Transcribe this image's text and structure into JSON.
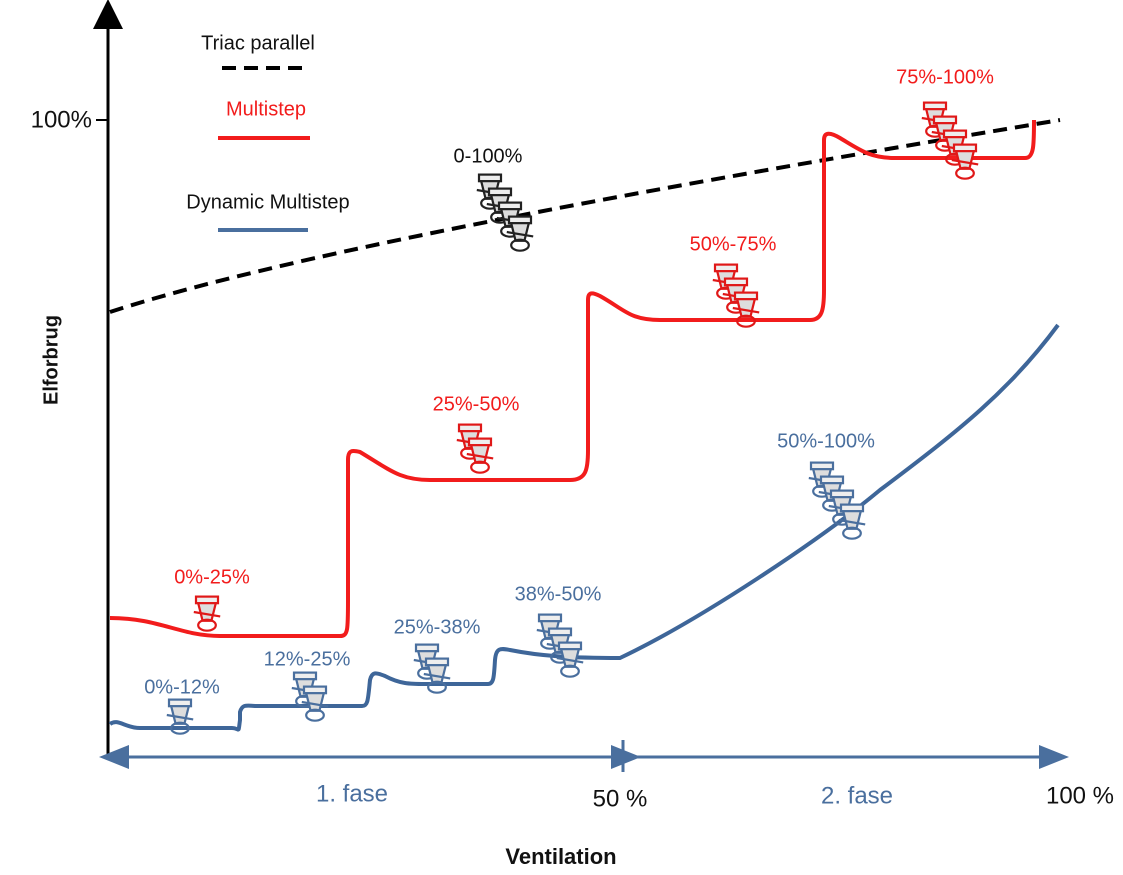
{
  "legend": {
    "triac": "Triac parallel",
    "multistep": "Multistep",
    "dynamic": "Dynamic Multistep"
  },
  "y_axis": {
    "title": "Elforbrug",
    "tick": "100%"
  },
  "x_axis": {
    "title": "Ventilation",
    "phase1": "1. fase",
    "mid": "50 %",
    "phase2": "2. fase",
    "end": "100 %"
  },
  "triac_label": "0-100%",
  "multistep_labels": [
    "0%-25%",
    "25%-50%",
    "50%-75%",
    "75%-100%"
  ],
  "dynamic_labels": [
    "0%-12%",
    "12%-25%",
    "25%-38%",
    "38%-50%",
    "50%-100%"
  ]
}
